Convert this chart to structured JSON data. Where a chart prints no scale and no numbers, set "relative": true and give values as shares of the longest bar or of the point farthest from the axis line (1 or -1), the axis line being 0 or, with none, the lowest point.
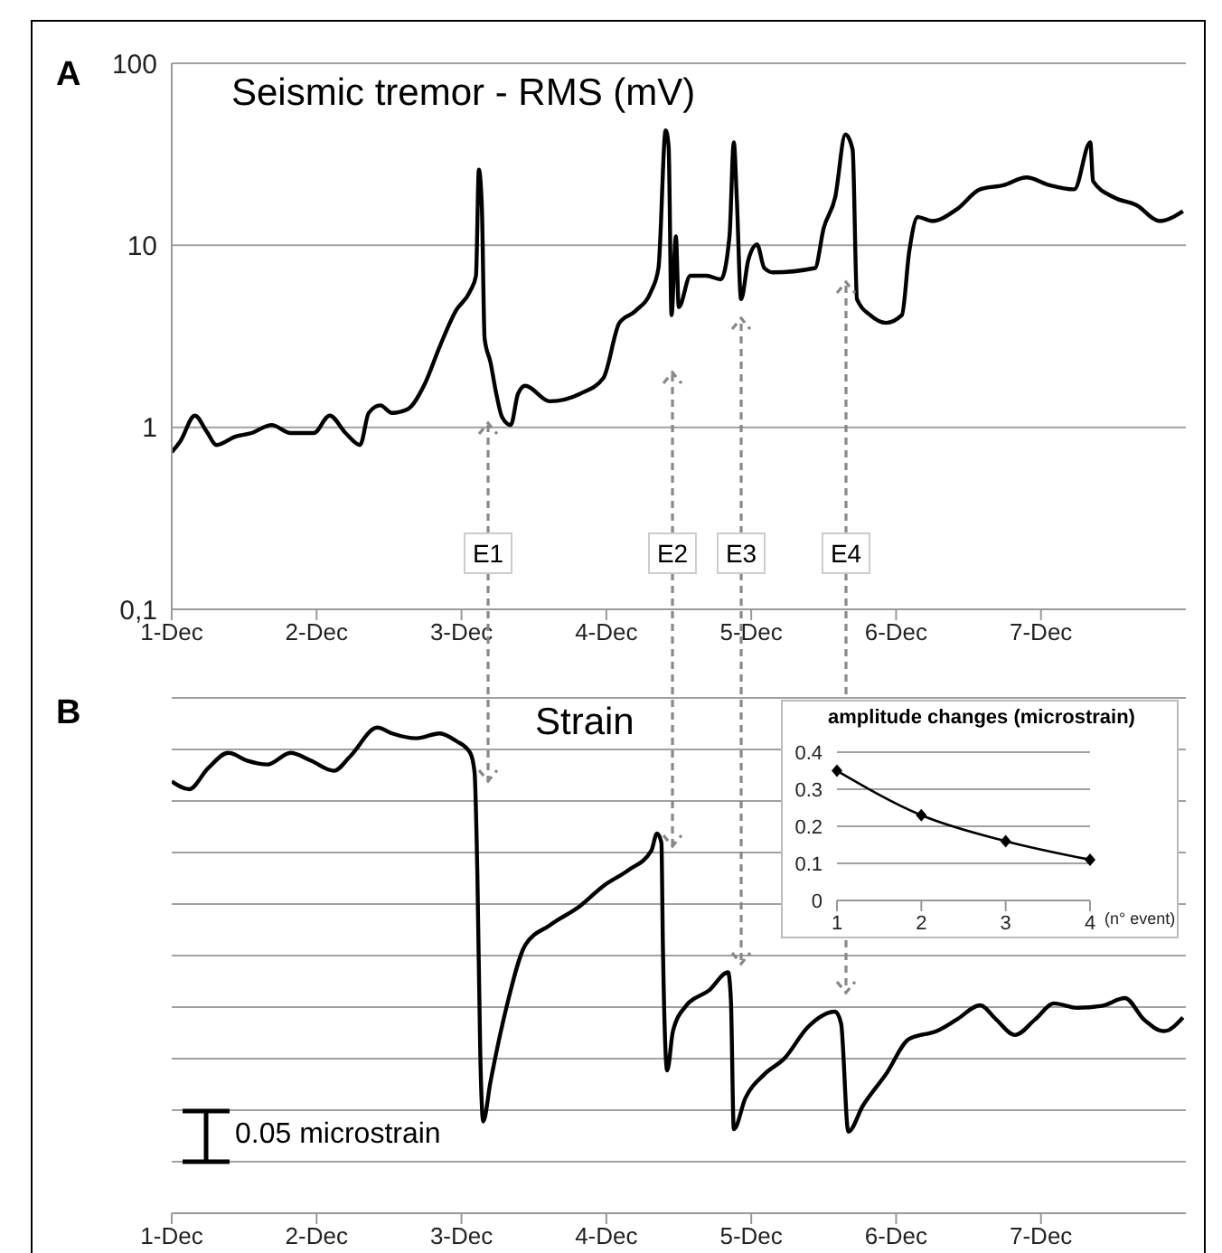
{
  "chart_data": [
    {
      "type": "line",
      "title": "Seismic tremor - RMS (mV)",
      "annotations": [
        "A",
        "E1",
        "E2",
        "E3",
        "E4"
      ],
      "log": "y",
      "grid": "y",
      "xlim": [
        "--12-01",
        "--12-08"
      ],
      "xticks": [
        {
          "value": "--12-01",
          "label": "1-Dec"
        },
        {
          "value": "--12-02",
          "label": "2-Dec"
        },
        {
          "value": "--12-03",
          "label": "3-Dec"
        },
        {
          "value": "--12-04",
          "label": "4-Dec"
        },
        {
          "value": "--12-05",
          "label": "5-Dec"
        },
        {
          "value": "--12-06",
          "label": "6-Dec"
        },
        {
          "value": "--12-07",
          "label": "7-Dec"
        }
      ],
      "ylim": [
        0.1,
        100
      ],
      "yticks": [
        {
          "value": 0.1,
          "label": "0,1"
        },
        1,
        10,
        100
      ],
      "x": [
        "--12-01T00:00",
        "--12-01T01:26",
        "--12-01T03:50",
        "--12-01T05:46",
        "--12-01T07:26",
        "--12-01T10:34",
        "--12-01T13:12",
        "--12-01T16:34",
        "--12-01T19:41",
        "--12-01T23:31",
        "--12-02T02:10",
        "--12-02T04:48",
        "--12-02T07:12",
        "--12-02T08:38",
        "--12-02T10:34",
        "--12-02T12:29",
        "--12-02T15:07",
        "--12-02T17:46",
        "--12-02T20:24",
        "--12-02T23:02",
        "--12-03T01:26",
        "--12-03T02:24",
        "--12-03T02:53",
        "--12-03T03:22",
        "--12-03T03:50",
        "--12-03T04:48",
        "--12-03T05:46",
        "--12-03T06:43",
        "--12-03T08:10",
        "--12-03T09:22",
        "--12-03T10:34",
        "--12-03T14:38",
        "--12-03T19:41",
        "--12-03T23:31",
        "--12-04T02:10",
        "--12-04T04:48",
        "--12-04T07:26",
        "--12-04T08:38",
        "--12-04T09:50",
        "--12-04T10:19",
        "--12-04T10:48",
        "--12-04T11:31",
        "--12-04T12:00",
        "--12-04T13:55",
        "--12-04T16:34",
        "--12-04T18:58",
        "--12-04T20:24",
        "--12-04T21:07",
        "--12-04T21:36",
        "--12-04T22:19",
        "--12-04T23:31",
        "--12-05T00:58",
        "--12-05T02:10",
        "--12-05T03:36",
        "--12-05T10:34",
        "--12-05T12:00",
        "--12-05T13:55",
        "--12-05T15:36",
        "--12-05T16:48",
        "--12-05T17:31",
        "--12-05T19:41",
        "--12-05T22:19",
        "--12-06T00:58",
        "--12-06T02:10",
        "--12-06T03:36",
        "--12-06T06:00",
        "--12-06T10:05",
        "--12-06T13:55",
        "--12-06T17:46",
        "--12-06T21:36",
        "--12-07T01:26",
        "--12-07T05:31",
        "--12-07T08:10",
        "--12-07T08:38",
        "--12-07T12:00",
        "--12-07T15:50",
        "--12-07T19:41",
        "--12-07T23:31"
      ],
      "series": [
        {
          "color": "#000000",
          "values": [
            0.73,
            0.84,
            1.16,
            0.95,
            0.8,
            0.89,
            0.93,
            1.03,
            0.93,
            0.93,
            1.16,
            0.93,
            0.8,
            1.2,
            1.32,
            1.2,
            1.26,
            1.69,
            2.78,
            4.35,
            5.6,
            6.8,
            26,
            16.6,
            3.07,
            2.28,
            1.53,
            1.14,
            1.03,
            1.53,
            1.69,
            1.39,
            1.53,
            1.87,
            3.75,
            4.35,
            5.6,
            7.5,
            42.8,
            35,
            4.14,
            11.2,
            4.57,
            6.8,
            6.8,
            6.5,
            11.2,
            36.8,
            18.4,
            5.06,
            8.3,
            10.1,
            7.5,
            7.1,
            7.5,
            12.4,
            18.4,
            40.6,
            33.5,
            5.06,
            4.14,
            3.75,
            4.14,
            9.2,
            14.3,
            13.6,
            15.8,
            20.3,
            21.4,
            23.6,
            21.4,
            20.3,
            36.8,
            22.5,
            18.4,
            16.6,
            13.6,
            15.4
          ]
        }
      ]
    },
    {
      "type": "line",
      "title": "Strain",
      "annotations": [
        "B",
        "0.05 microstrain"
      ],
      "relative": true,
      "grid": true,
      "tick_labels": "x",
      "xlim": [
        "--12-01",
        "--12-08"
      ],
      "xticks": [
        {
          "value": "--12-01",
          "label": "1-Dec"
        },
        {
          "value": "--12-02",
          "label": "2-Dec"
        },
        {
          "value": "--12-03",
          "label": "3-Dec"
        },
        {
          "value": "--12-04",
          "label": "4-Dec"
        },
        {
          "value": "--12-05",
          "label": "5-Dec"
        },
        {
          "value": "--12-06",
          "label": "6-Dec"
        },
        {
          "value": "--12-07",
          "label": "7-Dec"
        }
      ],
      "x": [
        "--12-01T00:00",
        "--12-01T02:53",
        "--12-01T06:00",
        "--12-01T09:22",
        "--12-01T12:29",
        "--12-01T15:50",
        "--12-01T19:41",
        "--12-01T23:02",
        "--12-02T02:53",
        "--12-02T05:31",
        "--12-02T10:05",
        "--12-02T12:29",
        "--12-02T16:34",
        "--12-02T20:24",
        "--12-02T23:02",
        "--12-03T01:26",
        "--12-03T02:10",
        "--12-03T02:38",
        "--12-03T03:07",
        "--12-03T03:36",
        "--12-03T04:48",
        "--12-03T07:26",
        "--12-03T10:34",
        "--12-03T14:38",
        "--12-03T19:41",
        "--12-03T23:31",
        "--12-04T03:36",
        "--12-04T07:26",
        "--12-04T08:24",
        "--12-04T09:07",
        "--12-04T09:22",
        "--12-04T10:05",
        "--12-04T11:02",
        "--12-04T13:12",
        "--12-04T17:02",
        "--12-04T20:10",
        "--12-04T20:38",
        "--12-04T21:07",
        "--12-04T23:02",
        "--12-05T02:10",
        "--12-05T05:31",
        "--12-05T09:22",
        "--12-05T13:55",
        "--12-05T14:53",
        "--12-05T16:05",
        "--12-05T18:29",
        "--12-05T22:19",
        "--12-06T02:10",
        "--12-06T06:43",
        "--12-06T10:05",
        "--12-06T13:55",
        "--12-06T16:34",
        "--12-06T19:41",
        "--12-06T23:02",
        "--12-07T02:10",
        "--12-07T06:00",
        "--12-07T10:05",
        "--12-07T13:55",
        "--12-07T17:02",
        "--12-07T20:24",
        "--12-07T23:31"
      ],
      "series": [
        {
          "color": "#000000",
          "values": [
            0.889,
            0.873,
            0.916,
            0.948,
            0.932,
            0.924,
            0.948,
            0.932,
            0.911,
            0.94,
            1.0,
            0.988,
            0.978,
            0.988,
            0.973,
            0.948,
            0.908,
            0.698,
            0.326,
            0.189,
            0.27,
            0.423,
            0.552,
            0.593,
            0.633,
            0.674,
            0.706,
            0.746,
            0.782,
            0.763,
            0.552,
            0.294,
            0.375,
            0.427,
            0.459,
            0.496,
            0.439,
            0.173,
            0.237,
            0.286,
            0.319,
            0.383,
            0.415,
            0.391,
            0.168,
            0.221,
            0.286,
            0.359,
            0.375,
            0.399,
            0.428,
            0.399,
            0.367,
            0.399,
            0.432,
            0.423,
            0.427,
            0.443,
            0.399,
            0.375,
            0.403
          ]
        }
      ]
    },
    {
      "type": "line",
      "title": "amplitude changes (microstrain)",
      "xlabel": "(n° event)",
      "categories": [
        "1",
        "2",
        "3",
        "4"
      ],
      "ylim": [
        0,
        0.4
      ],
      "yticks": [
        0,
        0.1,
        0.2,
        0.3,
        0.4
      ],
      "grid": "y",
      "marker": "diamond",
      "series": [
        {
          "color": "#000000",
          "values": [
            0.35,
            0.23,
            0.16,
            0.11
          ]
        }
      ]
    }
  ]
}
